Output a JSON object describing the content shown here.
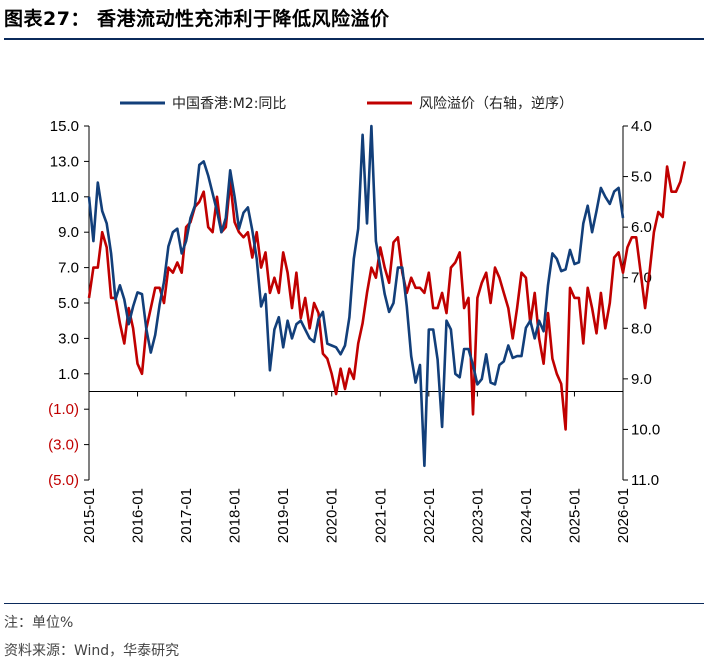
{
  "title": "图表27：  香港流动性充沛利于降低风险溢价",
  "note": "注：单位%",
  "source": "资料来源：Wind，华泰研究",
  "colors": {
    "m2": "#123f7a",
    "risk": "#c00000",
    "axis": "#000000",
    "negative": "#c00000"
  },
  "chart_data": {
    "type": "line",
    "x_labels": [
      "2015-01",
      "2016-01",
      "2017-01",
      "2018-01",
      "2019-01",
      "2020-01",
      "2021-01",
      "2022-01",
      "2023-01",
      "2024-01",
      "2025-01",
      "2026-01"
    ],
    "y_left": {
      "min": -5,
      "max": 15,
      "ticks": [
        "15.0",
        "13.0",
        "11.0",
        "9.0",
        "7.0",
        "5.0",
        "3.0",
        "1.0",
        "(1.0)",
        "(3.0)",
        "(5.0)"
      ]
    },
    "y_right": {
      "min": 4,
      "max": 11,
      "reversed": true,
      "ticks": [
        "4.0",
        "5.0",
        "6.0",
        "7.0",
        "8.0",
        "9.0",
        "10.0",
        "11.0"
      ]
    },
    "series": [
      {
        "name": "中国香港:M2:同比",
        "axis": "left",
        "values": [
          11.0,
          8.5,
          11.8,
          10.2,
          9.5,
          7.8,
          5.2,
          6.0,
          5.2,
          3.8,
          4.8,
          5.6,
          5.5,
          3.5,
          2.2,
          3.2,
          4.9,
          6.2,
          8.2,
          9.0,
          9.2,
          7.8,
          8.5,
          9.8,
          10.5,
          12.8,
          13.0,
          12.2,
          11.2,
          10.2,
          9.0,
          9.8,
          12.5,
          11.0,
          9.2,
          10.1,
          10.4,
          9.1,
          7.5,
          4.8,
          5.5,
          1.2,
          3.5,
          4.2,
          2.5,
          4.0,
          3.0,
          3.8,
          4.0,
          3.5,
          3.0,
          2.8,
          4.1,
          4.5,
          2.7,
          2.6,
          2.5,
          2.1,
          2.6,
          4.2,
          7.5,
          9.2,
          14.5,
          9.5,
          15.0,
          8.5,
          7.0,
          5.5,
          4.5,
          5.0,
          7.0,
          7.0,
          4.8,
          2.0,
          0.5,
          1.5,
          -4.2,
          3.5,
          3.5,
          1.8,
          -2.0,
          4.0,
          3.5,
          1.0,
          0.8,
          2.4,
          2.4,
          1.5,
          0.4,
          0.7,
          2.1,
          0.5,
          0.4,
          1.5,
          1.7,
          2.6,
          1.9,
          2.0,
          2.0,
          3.6,
          4.0,
          3.0,
          4.0,
          3.4,
          6.0,
          7.8,
          7.5,
          6.8,
          6.9,
          8.0,
          7.2,
          7.3,
          9.5,
          10.5,
          9.0,
          10.2,
          11.5,
          11.0,
          10.6,
          11.3,
          11.5,
          9.8
        ]
      },
      {
        "name": "风险溢价（右轴，逆序）",
        "axis": "right",
        "values": [
          7.4,
          6.8,
          6.8,
          6.1,
          6.4,
          7.4,
          7.4,
          7.9,
          8.3,
          7.6,
          8.0,
          8.7,
          8.9,
          8.0,
          7.6,
          7.2,
          7.2,
          7.5,
          6.8,
          6.9,
          6.7,
          6.9,
          6.0,
          5.9,
          5.6,
          5.5,
          5.3,
          6.0,
          6.1,
          5.4,
          6.1,
          6.0,
          5.1,
          5.9,
          6.1,
          6.2,
          6.1,
          6.6,
          6.1,
          6.8,
          6.5,
          7.3,
          7.0,
          7.3,
          6.5,
          6.9,
          7.6,
          6.9,
          7.8,
          7.4,
          8.0,
          7.5,
          7.7,
          8.5,
          8.6,
          8.9,
          9.3,
          8.8,
          9.2,
          8.8,
          9.0,
          8.3,
          7.9,
          7.3,
          6.8,
          7.0,
          6.4,
          6.8,
          7.1,
          6.3,
          6.2,
          6.9,
          7.3,
          7.0,
          7.2,
          7.2,
          7.3,
          6.9,
          7.6,
          7.6,
          7.3,
          7.7,
          6.8,
          6.7,
          6.5,
          7.6,
          7.4,
          9.7,
          7.4,
          7.1,
          6.9,
          7.5,
          6.8,
          7.0,
          7.3,
          7.6,
          8.2,
          7.6,
          6.9,
          7.0,
          7.9,
          7.3,
          8.2,
          8.7,
          7.7,
          8.6,
          8.9,
          9.1,
          10.0,
          7.2,
          7.4,
          7.4,
          8.3,
          7.2,
          7.6,
          8.1,
          7.3,
          8.0,
          7.5,
          6.6,
          6.5,
          6.9,
          6.4,
          6.2,
          6.2,
          6.9,
          7.6,
          6.9,
          6.1,
          5.7,
          5.8,
          4.8,
          5.3,
          5.3,
          5.1,
          4.7
        ]
      }
    ]
  }
}
